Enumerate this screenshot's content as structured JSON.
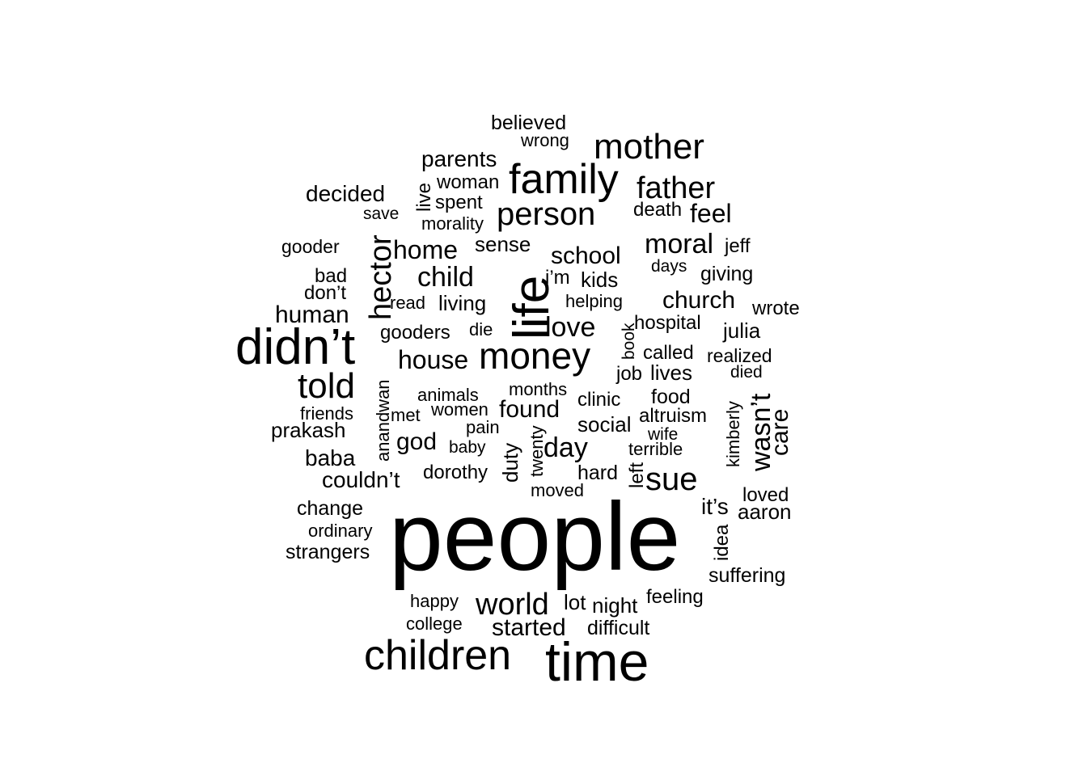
{
  "colors": {
    "background": "#ffffff",
    "text": "#000000"
  },
  "words": [
    "people",
    "time",
    "children",
    "didn’t",
    "life",
    "family",
    "money",
    "told",
    "mother",
    "person",
    "hector",
    "father",
    "world",
    "sue",
    "wasn’t",
    "moral",
    "started",
    "child",
    "home",
    "love",
    "house",
    "feel",
    "decided",
    "day",
    "school",
    "church",
    "human",
    "found",
    "parents",
    "god",
    "baba",
    "couldn’t",
    "care",
    "living",
    "kids",
    "sense",
    "julia",
    "believed",
    "live",
    "woman",
    "spent",
    "morality",
    "death",
    "save",
    "gooder",
    "jeff",
    "bad",
    "giving",
    "don’t",
    "days",
    "i’m",
    "read",
    "helping",
    "wrote",
    "gooders",
    "die",
    "hospital",
    "book",
    "called",
    "realized",
    "anandwan",
    "job",
    "lives",
    "died",
    "animals",
    "months",
    "clinic",
    "food",
    "friends",
    "met",
    "women",
    "altruism",
    "kimberly",
    "prakash",
    "pain",
    "social",
    "wife",
    "duty",
    "twenty",
    "terrible",
    "baby",
    "dorothy",
    "hard",
    "left",
    "moved",
    "change",
    "it’s",
    "loved",
    "aaron",
    "ordinary",
    "strangers",
    "idea",
    "suffering",
    "happy",
    "lot",
    "night",
    "feeling",
    "college",
    "difficult",
    "wrong"
  ]
}
